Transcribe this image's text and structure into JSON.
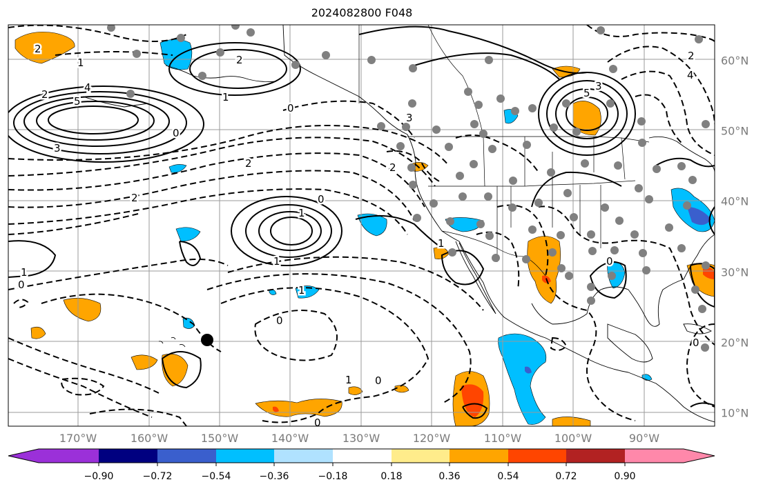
{
  "title": "2024082800 F048",
  "lon_labels": [
    "170°W",
    "160°W",
    "150°W",
    "140°W",
    "130°W",
    "120°W",
    "110°W",
    "100°W",
    "90°W"
  ],
  "lat_labels": [
    "60°N",
    "50°N",
    "40°N",
    "30°N",
    "20°N",
    "10°N"
  ],
  "colorbar": {
    "ticks": [
      "−0.90",
      "−0.72",
      "−0.54",
      "−0.36",
      "−0.18",
      "0.18",
      "0.36",
      "0.54",
      "0.72",
      "0.90"
    ],
    "colors": [
      "#9b30d9",
      "#000080",
      "#3a5fcd",
      "#00bfff",
      "#b0e2ff",
      "#ffffff",
      "#ffec8b",
      "#ffa500",
      "#ff4500",
      "#b22222",
      "#ff88aa"
    ]
  },
  "contour_labels": [
    "2",
    "1",
    "5",
    "4",
    "2",
    "3",
    "0",
    "1",
    "2",
    "0",
    "2",
    "2",
    "1",
    "0",
    "1",
    "1",
    "0",
    "0",
    "1",
    "0",
    "1",
    "0",
    "5",
    "3",
    "3",
    "4",
    "2",
    "1",
    "0",
    "0",
    "2"
  ],
  "marker": "black-dot"
}
